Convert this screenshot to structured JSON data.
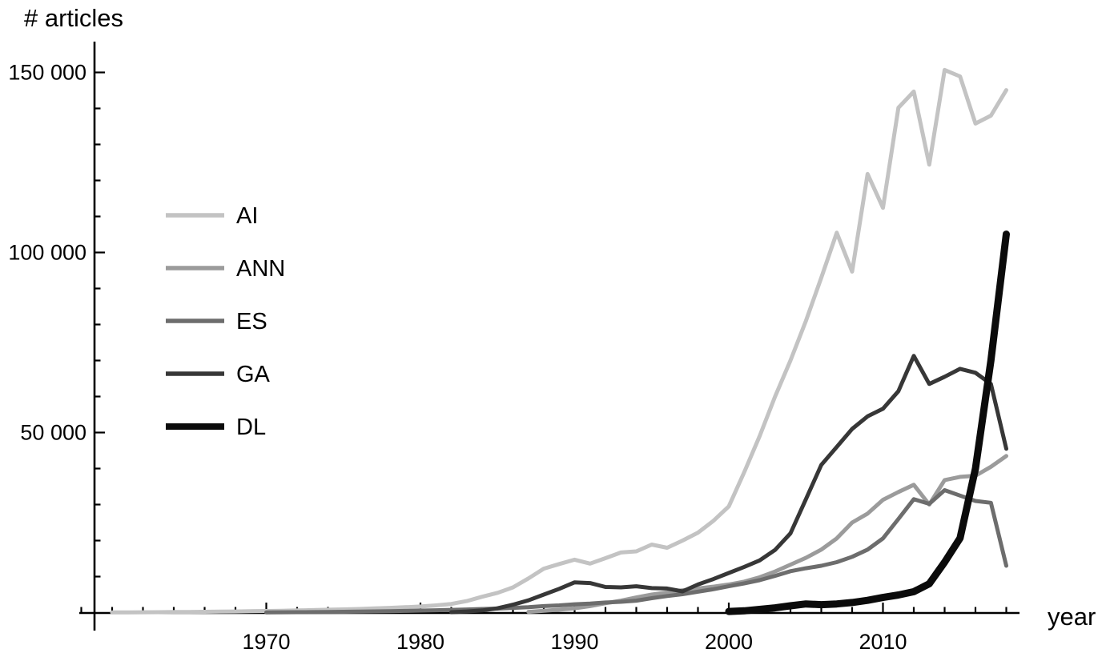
{
  "chart_data": {
    "type": "line",
    "title": "# articles",
    "xlabel": "year",
    "ylabel": "",
    "grid": false,
    "legend_position": "upper-left",
    "xlim": [
      1958,
      2020
    ],
    "ylim": [
      0,
      157000
    ],
    "x_ticks": [
      {
        "year": 1970,
        "label": "1970"
      },
      {
        "year": 1980,
        "label": "1980"
      },
      {
        "year": 1990,
        "label": "1990"
      },
      {
        "year": 2000,
        "label": "2000"
      },
      {
        "year": 2010,
        "label": "2010"
      }
    ],
    "y_ticks": [
      {
        "value": 50000,
        "label": "50 000"
      },
      {
        "value": 100000,
        "label": "100 000"
      },
      {
        "value": 150000,
        "label": "150 000"
      }
    ],
    "years": [
      1960,
      1961,
      1962,
      1963,
      1964,
      1965,
      1966,
      1967,
      1968,
      1969,
      1970,
      1971,
      1972,
      1973,
      1974,
      1975,
      1976,
      1977,
      1978,
      1979,
      1980,
      1981,
      1982,
      1983,
      1984,
      1985,
      1986,
      1987,
      1988,
      1989,
      1990,
      1991,
      1992,
      1993,
      1994,
      1995,
      1996,
      1997,
      1998,
      1999,
      2000,
      2001,
      2002,
      2003,
      2004,
      2005,
      2006,
      2007,
      2008,
      2009,
      2010,
      2011,
      2012,
      2013,
      2014,
      2015,
      2016,
      2017,
      2018
    ],
    "series": [
      {
        "name": "AI",
        "color": "#c3c3c3",
        "stroke_width": 5,
        "values": [
          50,
          70,
          90,
          120,
          150,
          180,
          220,
          270,
          320,
          380,
          450,
          520,
          600,
          700,
          800,
          900,
          1000,
          1150,
          1300,
          1500,
          1700,
          2000,
          2400,
          3200,
          4400,
          5500,
          7000,
          9500,
          12200,
          13500,
          14700,
          13600,
          15100,
          16700,
          17000,
          18900,
          18000,
          20000,
          22200,
          25500,
          29500,
          39000,
          49000,
          60000,
          70000,
          81000,
          93000,
          105500,
          94700,
          121800,
          112400,
          140200,
          144700,
          124400,
          150700,
          148900,
          135800,
          138000,
          145100
        ]
      },
      {
        "name": "ANN",
        "color": "#9b9b9b",
        "stroke_width": 5,
        "values": [
          null,
          null,
          null,
          null,
          null,
          null,
          null,
          null,
          null,
          null,
          null,
          null,
          null,
          null,
          null,
          null,
          null,
          null,
          null,
          null,
          null,
          null,
          null,
          null,
          null,
          null,
          null,
          200,
          500,
          800,
          1200,
          1800,
          2600,
          3300,
          4200,
          5000,
          5600,
          6200,
          6700,
          7200,
          7800,
          8600,
          9800,
          11400,
          13300,
          15200,
          17500,
          20600,
          25000,
          27500,
          31300,
          33500,
          35500,
          30000,
          36800,
          37700,
          38000,
          40500,
          43500
        ]
      },
      {
        "name": "ES",
        "color": "#6d6d6d",
        "stroke_width": 5,
        "values": [
          null,
          null,
          null,
          null,
          null,
          null,
          null,
          null,
          null,
          null,
          50,
          80,
          100,
          140,
          180,
          230,
          280,
          340,
          400,
          470,
          550,
          650,
          750,
          870,
          1000,
          1100,
          1300,
          1500,
          1800,
          2000,
          2300,
          2500,
          2800,
          3000,
          3300,
          4000,
          4600,
          5100,
          5800,
          6500,
          7300,
          8100,
          9000,
          10200,
          11500,
          12300,
          13000,
          14000,
          15500,
          17500,
          20600,
          26000,
          31500,
          30200,
          34000,
          32500,
          31000,
          30500,
          13000
        ]
      },
      {
        "name": "GA",
        "color": "#373737",
        "stroke_width": 5,
        "values": [
          null,
          null,
          null,
          null,
          null,
          null,
          null,
          null,
          null,
          null,
          null,
          null,
          null,
          null,
          null,
          null,
          null,
          null,
          null,
          null,
          null,
          null,
          100,
          300,
          600,
          1200,
          2200,
          3400,
          5000,
          6600,
          8400,
          8200,
          7100,
          7000,
          7300,
          6800,
          6700,
          5900,
          7800,
          9300,
          11000,
          12700,
          14500,
          17400,
          22000,
          31500,
          41000,
          46000,
          51000,
          54500,
          56600,
          61500,
          71300,
          63500,
          65500,
          67700,
          66600,
          63500,
          45500
        ]
      },
      {
        "name": "DL",
        "color": "#0b0b0b",
        "stroke_width": 9,
        "values": [
          null,
          null,
          null,
          null,
          null,
          null,
          null,
          null,
          null,
          null,
          null,
          null,
          null,
          null,
          null,
          null,
          null,
          null,
          null,
          null,
          null,
          null,
          null,
          null,
          null,
          null,
          null,
          null,
          null,
          null,
          null,
          null,
          null,
          null,
          null,
          null,
          null,
          null,
          null,
          null,
          300,
          500,
          900,
          1300,
          1900,
          2400,
          2200,
          2400,
          2800,
          3400,
          4200,
          4900,
          5800,
          8000,
          14000,
          20700,
          40000,
          70000,
          105100
        ]
      }
    ]
  },
  "legend": {
    "items": [
      {
        "label": "AI",
        "color": "#c3c3c3",
        "thickness": 5.5
      },
      {
        "label": "ANN",
        "color": "#9b9b9b",
        "thickness": 5.5
      },
      {
        "label": "ES",
        "color": "#6d6d6d",
        "thickness": 5.5
      },
      {
        "label": "GA",
        "color": "#373737",
        "thickness": 5.5
      },
      {
        "label": "DL",
        "color": "#0b0b0b",
        "thickness": 8
      }
    ]
  }
}
